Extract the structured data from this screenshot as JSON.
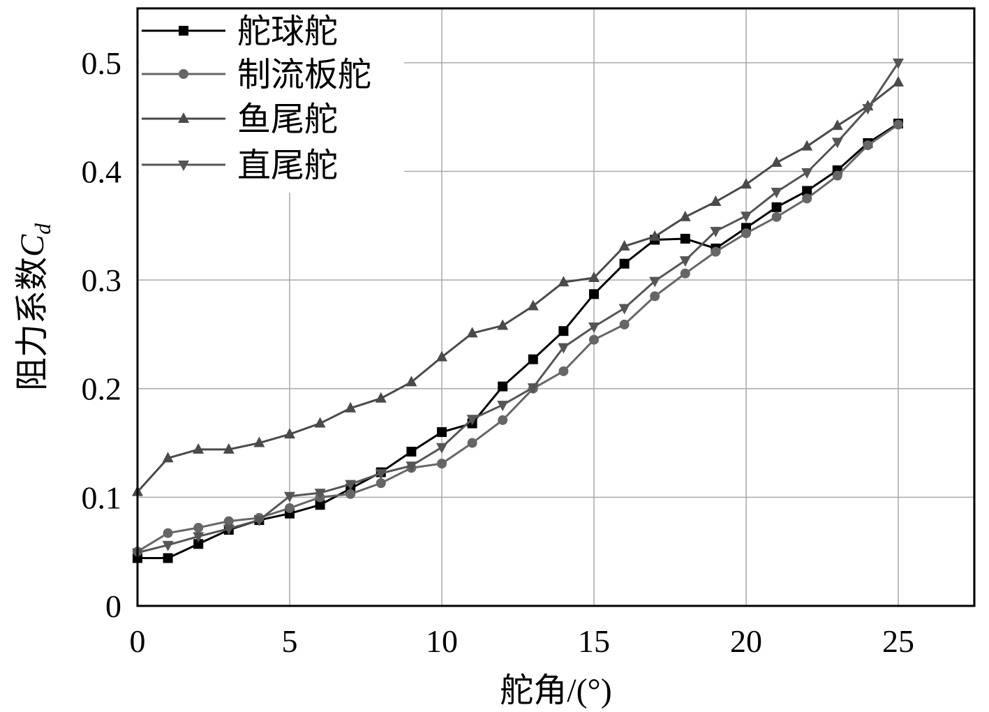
{
  "chart_data": {
    "type": "line",
    "title": "",
    "xlabel": "舵角/(°)",
    "ylabel": "阻力系数",
    "ylabel_symbol": "C",
    "ylabel_subscript": "d",
    "xlim": [
      0,
      27.5
    ],
    "ylim": [
      0,
      0.55
    ],
    "xticks": [
      0,
      5,
      10,
      15,
      20,
      25
    ],
    "xtick_labels": [
      "0",
      "5",
      "10",
      "15",
      "20",
      "25"
    ],
    "yticks": [
      0,
      0.1,
      0.2,
      0.3,
      0.4,
      0.5
    ],
    "ytick_labels": [
      "0",
      "0.1",
      "0.2",
      "0.3",
      "0.4",
      "0.5"
    ],
    "grid": true,
    "legend_position": "top-left",
    "x": [
      0,
      1,
      2,
      3,
      4,
      5,
      6,
      7,
      8,
      9,
      10,
      11,
      12,
      13,
      14,
      15,
      16,
      17,
      18,
      19,
      20,
      21,
      22,
      23,
      24,
      25
    ],
    "series": [
      {
        "name": "舵球舵",
        "marker": "square",
        "color": "#000000",
        "values": [
          0.044,
          0.044,
          0.057,
          0.07,
          0.079,
          0.085,
          0.093,
          0.108,
          0.123,
          0.142,
          0.16,
          0.168,
          0.202,
          0.227,
          0.253,
          0.287,
          0.315,
          0.337,
          0.338,
          0.329,
          0.348,
          0.367,
          0.382,
          0.401,
          0.426,
          0.444
        ]
      },
      {
        "name": "制流板舵",
        "marker": "circle",
        "color": "#666666",
        "values": [
          0.05,
          0.067,
          0.072,
          0.078,
          0.081,
          0.09,
          0.1,
          0.103,
          0.113,
          0.127,
          0.131,
          0.15,
          0.171,
          0.2,
          0.216,
          0.245,
          0.259,
          0.285,
          0.306,
          0.326,
          0.343,
          0.358,
          0.375,
          0.396,
          0.424,
          0.443
        ]
      },
      {
        "name": "鱼尾舵",
        "marker": "triangle-up",
        "color": "#4a4a4a",
        "values": [
          0.105,
          0.136,
          0.144,
          0.144,
          0.15,
          0.158,
          0.168,
          0.182,
          0.191,
          0.206,
          0.229,
          0.251,
          0.258,
          0.276,
          0.298,
          0.302,
          0.331,
          0.34,
          0.358,
          0.372,
          0.388,
          0.408,
          0.423,
          0.442,
          0.46,
          0.482
        ]
      },
      {
        "name": "直尾舵",
        "marker": "triangle-down",
        "color": "#555555",
        "values": [
          0.049,
          0.056,
          0.064,
          0.071,
          0.079,
          0.101,
          0.104,
          0.112,
          0.122,
          0.129,
          0.146,
          0.172,
          0.185,
          0.201,
          0.238,
          0.257,
          0.274,
          0.299,
          0.318,
          0.345,
          0.359,
          0.381,
          0.399,
          0.427,
          0.458,
          0.5
        ]
      }
    ]
  }
}
